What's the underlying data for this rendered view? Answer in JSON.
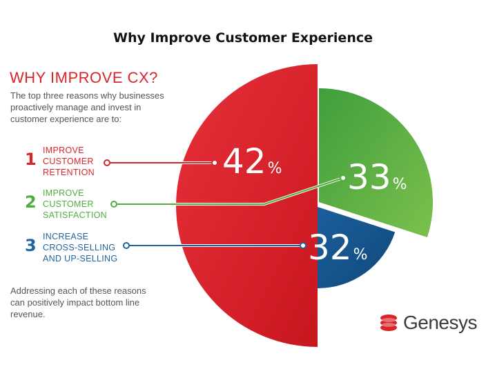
{
  "title": "Why Improve Customer Experience",
  "subtitle": "WHY IMPROVE CX?",
  "intro": "The top three reasons why businesses proactively manage and invest in customer experience are to:",
  "outro": "Addressing each of these reasons can positively impact bottom line revenue.",
  "logo": {
    "text": "Genesys",
    "icon": "genesys-logo-icon",
    "color": "#d9252a"
  },
  "chart_data": {
    "type": "pie",
    "title": "Why Improve Customer Experience",
    "unit": "%",
    "slices": [
      {
        "rank": "1",
        "lines": [
          "IMPROVE",
          "CUSTOMER",
          "RETENTION"
        ],
        "value": 42,
        "color": "#d9252a"
      },
      {
        "rank": "2",
        "lines": [
          "IMPROVE",
          "CUSTOMER",
          "SATISFACTION"
        ],
        "value": 33,
        "color": "#4fad3f"
      },
      {
        "rank": "3",
        "lines": [
          "INCREASE",
          "CROSS-SELLING",
          "AND UP-SELLING"
        ],
        "value": 32,
        "color": "#1f64a0"
      }
    ]
  }
}
